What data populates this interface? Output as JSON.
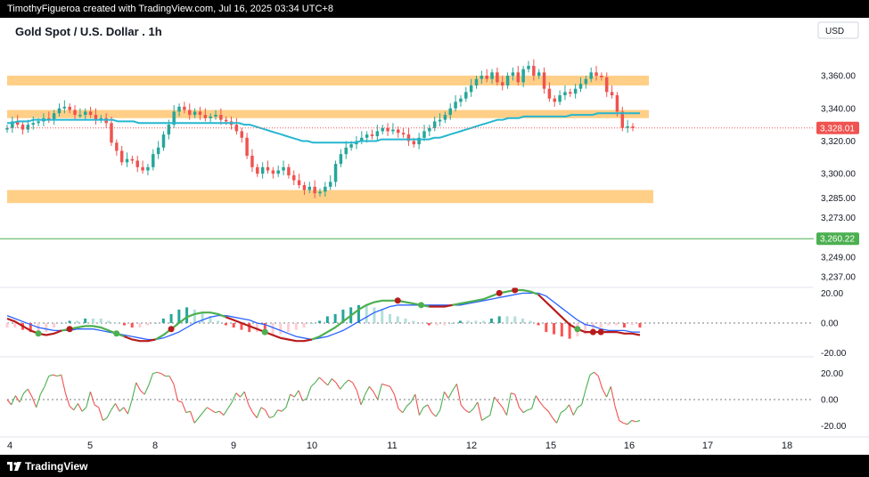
{
  "header": {
    "caption": "TimothyFigueroa created with TradingView.com, Jul 16, 2025 03:34 UTC+8"
  },
  "footer": {
    "brand": "TradingView"
  },
  "colors": {
    "up": "#26a69a",
    "down": "#ef5350",
    "zone": "#ffcf87",
    "ma": "#26b6d0",
    "macd_fast": "#4caf50",
    "macd_slow": "#b71c1c",
    "signal_blue": "#2962ff",
    "green_line": "#4caf50",
    "rsi_up": "#4caf50",
    "rsi_down": "#ef5350",
    "price_label": "#ef5350",
    "price_label_green": "#4caf50"
  },
  "chart_data": [
    {
      "type": "candlestick",
      "title": "Gold Spot / U.S. Dollar . 1h",
      "currency": "USD",
      "ylim": [
        3232,
        3378
      ],
      "y_ticks": [
        "3,360.00",
        "3,340.00",
        "3,320.00",
        "3,300.00",
        "3,285.00",
        "3,273.00",
        "3,249.00",
        "3,237.00"
      ],
      "x_ticks": [
        "4",
        "5",
        "8",
        "9",
        "10",
        "11",
        "12",
        "15",
        "16",
        "17",
        "18"
      ],
      "price_labels": [
        {
          "value": 3328.01,
          "text": "3,328.01",
          "color": "red"
        },
        {
          "value": 3260.22,
          "text": "3,260.22",
          "color": "green"
        }
      ],
      "horizontal_line": {
        "value": 3260.22
      },
      "zones": [
        {
          "from": 3354,
          "to": 3360
        },
        {
          "from": 3334,
          "to": 3339
        },
        {
          "from": 3282,
          "to": 3290
        }
      ],
      "close_series": [
        3328,
        3332,
        3330,
        3327,
        3330,
        3331,
        3332,
        3334,
        3333,
        3337,
        3340,
        3341,
        3339,
        3336,
        3336,
        3338,
        3336,
        3333,
        3334,
        3331,
        3319,
        3314,
        3307,
        3309,
        3308,
        3304,
        3302,
        3304,
        3312,
        3316,
        3324,
        3330,
        3338,
        3341,
        3339,
        3336,
        3338,
        3336,
        3334,
        3335,
        3336,
        3333,
        3332,
        3330,
        3326,
        3322,
        3311,
        3304,
        3300,
        3304,
        3302,
        3300,
        3302,
        3304,
        3299,
        3296,
        3293,
        3290,
        3292,
        3288,
        3289,
        3292,
        3295,
        3306,
        3312,
        3316,
        3318,
        3320,
        3322,
        3324,
        3323,
        3326,
        3328,
        3326,
        3327,
        3325,
        3324,
        3320,
        3318,
        3322,
        3326,
        3328,
        3332,
        3333,
        3336,
        3340,
        3344,
        3346,
        3350,
        3354,
        3358,
        3360,
        3358,
        3362,
        3356,
        3354,
        3360,
        3362,
        3356,
        3364,
        3366,
        3360,
        3362,
        3352,
        3346,
        3344,
        3348,
        3350,
        3349,
        3352,
        3355,
        3358,
        3362,
        3360,
        3359,
        3350,
        3348,
        3338,
        3328,
        3329,
        3328
      ],
      "ma_series": [
        3331,
        3331,
        3332,
        3332,
        3332,
        3333,
        3333,
        3333,
        3333,
        3333,
        3333,
        3333,
        3333,
        3333,
        3333,
        3333,
        3333,
        3333,
        3333,
        3333,
        3333,
        3332,
        3332,
        3332,
        3332,
        3331,
        3331,
        3331,
        3331,
        3331,
        3331,
        3331,
        3331,
        3331,
        3331,
        3331,
        3331,
        3331,
        3331,
        3331,
        3331,
        3331,
        3331,
        3331,
        3331,
        3330,
        3330,
        3329,
        3328,
        3327,
        3326,
        3325,
        3324,
        3323,
        3322,
        3321,
        3320,
        3320,
        3319,
        3319,
        3319,
        3319,
        3319,
        3319,
        3319,
        3319,
        3319,
        3320,
        3320,
        3320,
        3320,
        3321,
        3321,
        3321,
        3321,
        3321,
        3321,
        3321,
        3321,
        3321,
        3321,
        3322,
        3322,
        3323,
        3324,
        3325,
        3326,
        3327,
        3328,
        3329,
        3330,
        3331,
        3332,
        3333,
        3333,
        3334,
        3334,
        3334,
        3335,
        3335,
        3335,
        3335,
        3335,
        3335,
        3335,
        3335,
        3335,
        3336,
        3336,
        3336,
        3336,
        3336,
        3337,
        3337,
        3337,
        3337,
        3337,
        3337,
        3337,
        3337,
        3337
      ]
    },
    {
      "type": "macd",
      "ylim": [
        -22,
        22
      ],
      "y_ticks": [
        "20.00",
        "0.00",
        "-20.00"
      ],
      "macd_series": [
        3,
        1,
        -2,
        -5,
        -7,
        -8,
        -7,
        -5,
        -4,
        -3,
        -2,
        -2,
        -3,
        -5,
        -7,
        -9,
        -11,
        -12,
        -12,
        -11,
        -8,
        -4,
        0,
        4,
        6,
        7,
        7,
        6,
        4,
        2,
        0,
        -2,
        -4,
        -6,
        -8,
        -10,
        -11,
        -12,
        -12,
        -11,
        -9,
        -6,
        -3,
        1,
        5,
        9,
        12,
        14,
        15,
        15,
        15,
        14,
        13,
        12,
        11,
        11,
        11,
        12,
        13,
        14,
        15,
        16,
        18,
        20,
        21,
        22,
        22,
        21,
        19,
        14,
        9,
        4,
        -1,
        -4,
        -6,
        -6,
        -6,
        -6,
        -6,
        -7,
        -7,
        -8
      ],
      "signal_series": [
        5,
        3,
        1,
        -1,
        -3,
        -4,
        -5,
        -5,
        -5,
        -4,
        -4,
        -4,
        -5,
        -6,
        -7,
        -8,
        -9,
        -10,
        -11,
        -11,
        -10,
        -8,
        -6,
        -3,
        0,
        2,
        4,
        5,
        5,
        4,
        3,
        2,
        0,
        -1,
        -3,
        -5,
        -7,
        -9,
        -10,
        -11,
        -10,
        -9,
        -7,
        -5,
        -2,
        1,
        4,
        7,
        9,
        11,
        12,
        12,
        12,
        12,
        12,
        12,
        12,
        12,
        12,
        13,
        14,
        15,
        16,
        17,
        18,
        19,
        20,
        20,
        20,
        18,
        14,
        10,
        6,
        2,
        -1,
        -2,
        -4,
        -5,
        -5,
        -5,
        -6,
        -6
      ],
      "cross_markers": [
        {
          "index": 4,
          "color": "green"
        },
        {
          "index": 8,
          "color": "red"
        },
        {
          "index": 14,
          "color": "green"
        },
        {
          "index": 21,
          "color": "red"
        },
        {
          "index": 33,
          "color": "green"
        },
        {
          "index": 50,
          "color": "red"
        },
        {
          "index": 53,
          "color": "green"
        },
        {
          "index": 63,
          "color": "red"
        },
        {
          "index": 65,
          "color": "red"
        },
        {
          "index": 73,
          "color": "green"
        },
        {
          "index": 75,
          "color": "red"
        },
        {
          "index": 76,
          "color": "red"
        }
      ]
    },
    {
      "type": "line",
      "ylim": [
        -28,
        28
      ],
      "y_ticks": [
        "20.00",
        "0.00",
        "-20.00"
      ],
      "values": [
        0,
        -4,
        3,
        -2,
        5,
        8,
        2,
        -6,
        4,
        10,
        18,
        19,
        18,
        19,
        5,
        -5,
        -8,
        -3,
        -9,
        -6,
        6,
        -4,
        -6,
        -16,
        -14,
        -8,
        -3,
        -9,
        -6,
        -11,
        0,
        13,
        7,
        4,
        11,
        20,
        21,
        20,
        18,
        18,
        12,
        -1,
        -2,
        -10,
        -9,
        -18,
        -14,
        -10,
        -6,
        -8,
        -10,
        -9,
        -12,
        -7,
        -2,
        5,
        2,
        6,
        -4,
        -10,
        -14,
        -6,
        -8,
        -14,
        -13,
        -8,
        -9,
        -6,
        4,
        2,
        7,
        -1,
        1,
        10,
        13,
        17,
        14,
        11,
        16,
        13,
        8,
        12,
        15,
        13,
        7,
        -4,
        4,
        10,
        6,
        0,
        12,
        11,
        10,
        4,
        -7,
        -10,
        -5,
        -2,
        4,
        -12,
        -6,
        -4,
        -10,
        -13,
        -8,
        6,
        1,
        7,
        12,
        -4,
        -8,
        -10,
        -7,
        -2,
        -16,
        -14,
        -12,
        2,
        -2,
        -6,
        -12,
        5,
        4,
        -6,
        -10,
        -8,
        -7,
        3,
        -2,
        -6,
        -9,
        -14,
        -18,
        -10,
        -8,
        -4,
        -12,
        -6,
        -4,
        8,
        19,
        21,
        18,
        8,
        2,
        10,
        -5,
        -16,
        -18,
        -19,
        -16,
        -17,
        -16
      ]
    }
  ]
}
